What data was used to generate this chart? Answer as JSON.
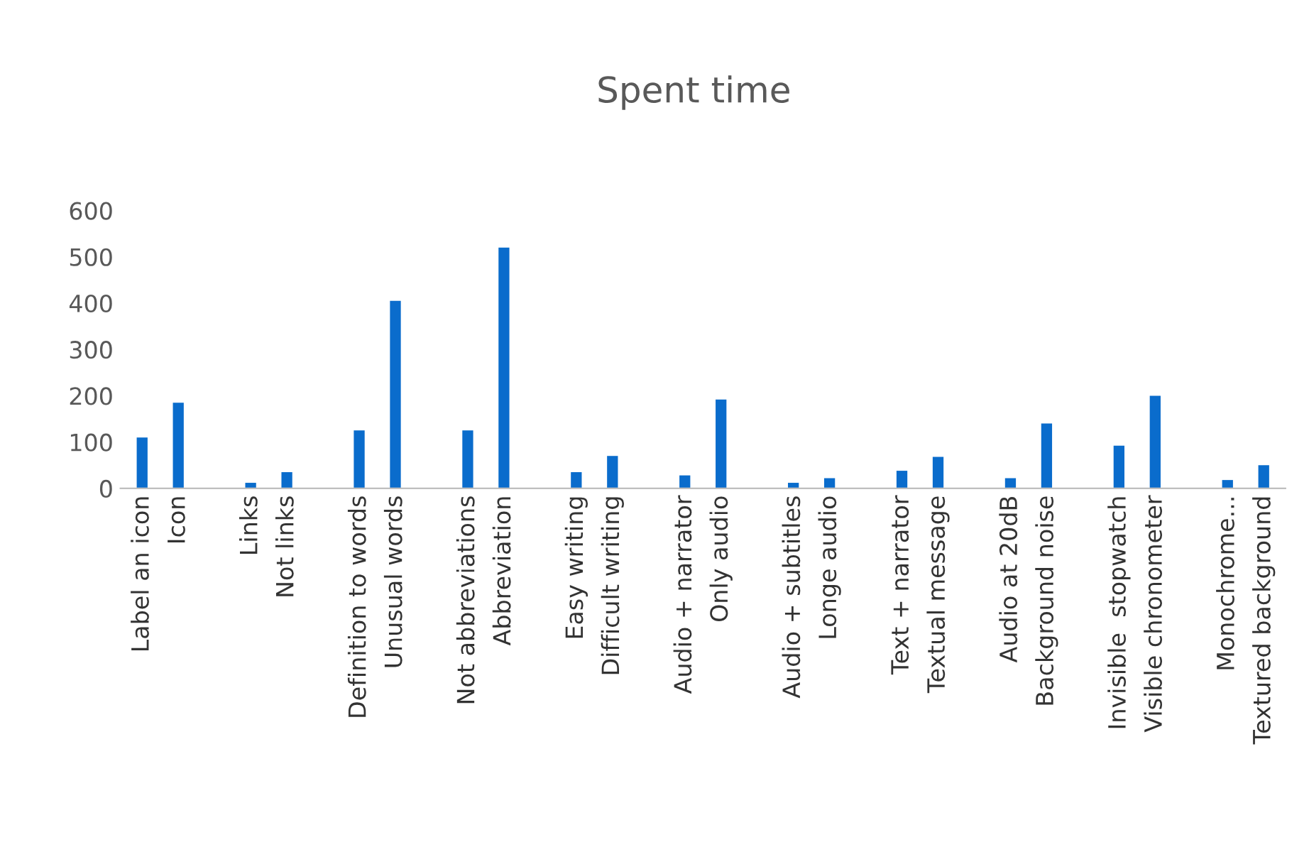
{
  "chart_data": {
    "type": "bar",
    "title": "Spent time",
    "categories": [
      "Label an icon",
      "Icon",
      null,
      "Links",
      "Not links",
      null,
      "Definition to words",
      "Unusual words",
      null,
      "Not abbreviations",
      "Abbreviation",
      null,
      "Easy writing",
      "Difficult writing",
      null,
      "Audio + narrator",
      "Only audio",
      null,
      "Audio + subtitles",
      "Longe audio",
      null,
      "Text + narrator",
      "Textual message",
      null,
      "Audio at 20dB",
      "Background noise",
      null,
      "Invisible  stopwatch",
      "Visible chronometer",
      null,
      "Monochrome...",
      "Textured background"
    ],
    "values": [
      110,
      185,
      null,
      12,
      35,
      null,
      125,
      405,
      null,
      125,
      520,
      null,
      35,
      70,
      null,
      28,
      192,
      null,
      12,
      22,
      null,
      38,
      68,
      null,
      22,
      140,
      null,
      92,
      200,
      null,
      18,
      50
    ],
    "color": "#0a6ccc",
    "ylim": [
      0,
      600
    ],
    "yticks": [
      0,
      100,
      200,
      300,
      400,
      500,
      600
    ],
    "grid": false,
    "legend": false
  }
}
